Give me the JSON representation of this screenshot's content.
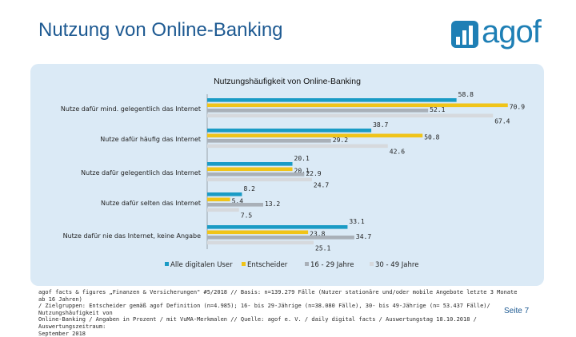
{
  "header": {
    "title": "Nutzung von Online-Banking",
    "logo_text": "agof"
  },
  "colors": {
    "series": [
      "#1a9bc5",
      "#f0c419",
      "#a9b0b8",
      "#d6d9dd"
    ],
    "panel": "#dbeaf6",
    "title": "#1e5a92"
  },
  "chart_data": {
    "type": "bar",
    "orientation": "horizontal",
    "title": "Nutzungshäufigkeit von Online-Banking",
    "categories": [
      "Nutze dafür mind. gelegentlich das Internet",
      "Nutze dafür häufig das Internet",
      "Nutze dafür gelegentlich das Internet",
      "Nutze dafür selten das Internet",
      "Nutze dafür nie das Internet, keine Angabe"
    ],
    "series": [
      {
        "name": "Alle digitalen User",
        "values": [
          58.8,
          38.7,
          20.1,
          8.2,
          33.1
        ]
      },
      {
        "name": "Entscheider",
        "values": [
          70.9,
          50.8,
          20.1,
          5.4,
          23.8
        ]
      },
      {
        "name": "16 - 29 Jahre",
        "values": [
          52.1,
          29.2,
          22.9,
          13.2,
          34.7
        ]
      },
      {
        "name": "30 - 49 Jahre",
        "values": [
          67.4,
          42.6,
          24.7,
          7.5,
          25.1
        ]
      }
    ],
    "value_labels": [
      [
        "58.8",
        "70.9",
        "52.1",
        "67.4"
      ],
      [
        "38.7",
        "50.8",
        "29.2",
        "42.6"
      ],
      [
        "20.1",
        "20.1",
        "22.9",
        "24.7"
      ],
      [
        "8.2",
        "5.4",
        "13.2",
        "7.5"
      ],
      [
        "33.1",
        "23.8",
        "34.7",
        "25.1"
      ]
    ],
    "xlim": [
      0,
      80
    ],
    "grid": false,
    "legend_position": "bottom"
  },
  "footer": {
    "lines": [
      "agof facts & figures „Finanzen & Versicherungen\" #5/2018 // Basis: n=139.279 Fälle (Nutzer stationäre und/oder mobile Angebote letzte 3 Monate ab 16 Jahren)",
      "/ Zielgruppen: Entscheider gemäß agof Definition (n=4.985); 16- bis 29-Jährige (n=38.080 Fälle), 30- bis 49-Jährige (n= 53.437 Fälle)/ Nutzungshäufigkeit von",
      "Online-Banking / Angaben in Prozent / mit VuMA-Merkmalen // Quelle: agof e. V. / daily digital facts / Auswertungstag 18.10.2018 / Auswertungszeitraum:",
      "September 2018"
    ],
    "page_label": "Seite 7"
  }
}
